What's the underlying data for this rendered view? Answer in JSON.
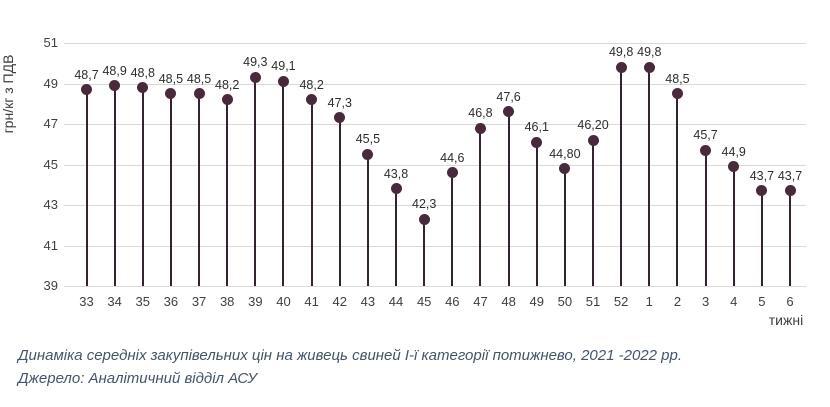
{
  "chart_data": {
    "type": "lollipop",
    "title": "Динаміка середніх закупівельних цін на живець свиней І-ї категорії потижнево, 2021 -2022 рр.",
    "xlabel": "тижні",
    "ylabel": "грн/кг з ПДВ",
    "categories": [
      "33",
      "34",
      "35",
      "36",
      "37",
      "38",
      "39",
      "40",
      "41",
      "42",
      "43",
      "44",
      "45",
      "46",
      "47",
      "48",
      "49",
      "50",
      "51",
      "52",
      "1",
      "2",
      "3",
      "4",
      "5",
      "6"
    ],
    "values": [
      48.7,
      48.9,
      48.8,
      48.5,
      48.5,
      48.2,
      49.3,
      49.1,
      48.2,
      47.3,
      45.5,
      43.8,
      42.3,
      44.6,
      46.8,
      47.6,
      46.1,
      44.8,
      46.2,
      49.8,
      49.8,
      48.5,
      45.7,
      44.9,
      43.7,
      43.7
    ],
    "point_labels": [
      "48,7",
      "48,9",
      "48,8",
      "48,5",
      "48,5",
      "48,2",
      "49,3",
      "49,1",
      "48,2",
      "47,3",
      "45,5",
      "43,8",
      "42,3",
      "44,6",
      "46,8",
      "47,6",
      "46,1",
      "44,80",
      "46,20",
      "49,8",
      "49,8",
      "48,5",
      "45,7",
      "44,9",
      "43,7",
      "43,7"
    ],
    "yticks": [
      "39",
      "41",
      "43",
      "45",
      "47",
      "49",
      "51"
    ],
    "ylim": [
      39,
      51
    ],
    "grid": true,
    "legend": false,
    "marker_color": "#482a3c",
    "stem_color": "#332330",
    "gridline_color": "#d9d9d9",
    "text_color": "#3f3f3f",
    "caption_color": "#44546a"
  },
  "caption": {
    "line1": "Динаміка середніх закупівельних цін на живець свиней І-ї категорії потижнево, 2021 -2022 рр.",
    "line2": "Джерело: Аналітичний відділ АСУ"
  }
}
